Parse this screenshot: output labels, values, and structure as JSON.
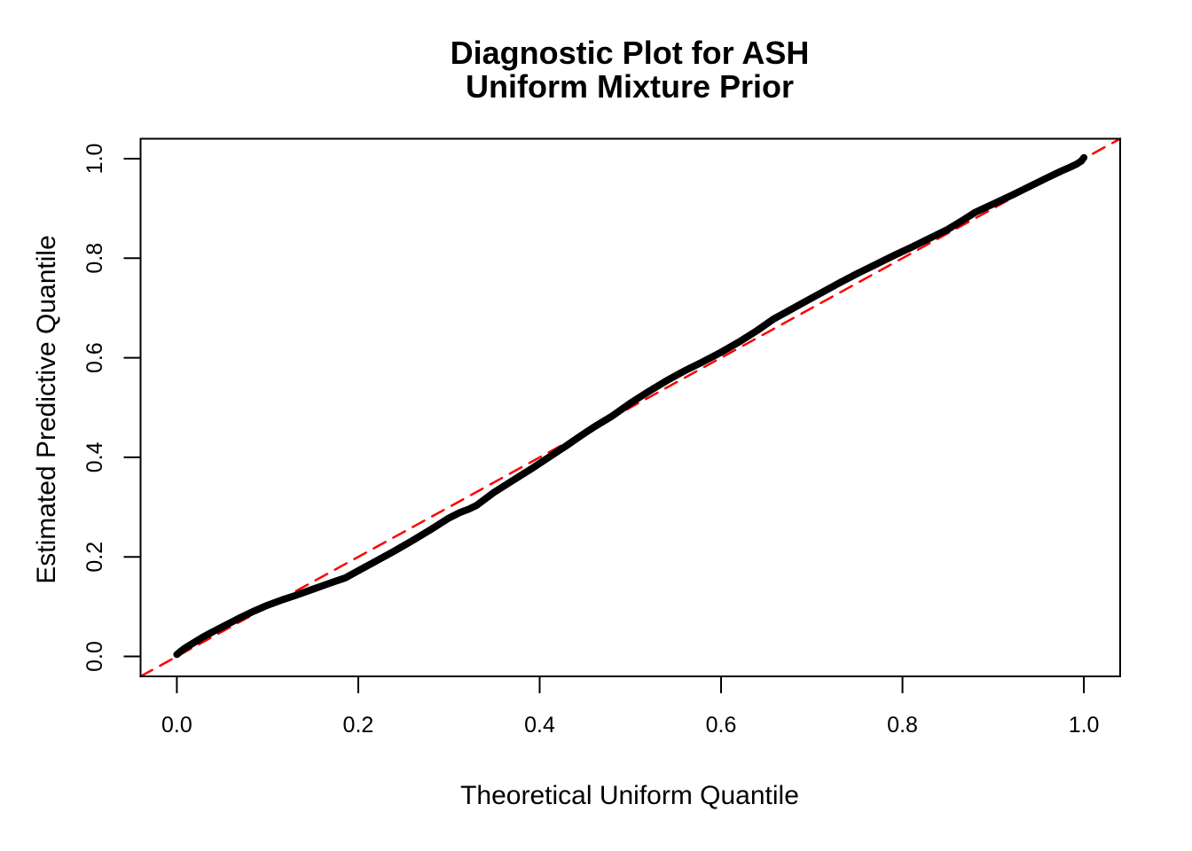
{
  "title_lines": [
    "Diagnostic Plot for ASH",
    "Uniform Mixture Prior"
  ],
  "colors": {
    "curve": "#000000",
    "reference_line": "#FF0000",
    "axis": "#000000",
    "background": "#FFFFFF"
  },
  "chart_data": {
    "type": "line",
    "title": "Diagnostic Plot for ASH\nUniform Mixture Prior",
    "xlabel": "Theoretical Uniform Quantile",
    "ylabel": "Estimated Predictive Quantile",
    "xlim": [
      -0.04,
      1.04
    ],
    "ylim": [
      -0.04,
      1.04
    ],
    "grid": false,
    "legend": null,
    "x_ticks": {
      "values": [
        0.0,
        0.2,
        0.4,
        0.6,
        0.8,
        1.0
      ],
      "labels": [
        "0.0",
        "0.2",
        "0.4",
        "0.6",
        "0.8",
        "1.0"
      ]
    },
    "y_ticks": {
      "values": [
        0.0,
        0.2,
        0.4,
        0.6,
        0.8,
        1.0
      ],
      "labels": [
        "0.0",
        "0.2",
        "0.4",
        "0.6",
        "0.8",
        "1.0"
      ]
    },
    "series": [
      {
        "name": "identity-reference-line",
        "description": "y = x reference",
        "style": "dashed",
        "color": "#FF0000",
        "line_width": 2.5,
        "points": [
          [
            -0.04,
            -0.04
          ],
          [
            1.04,
            1.04
          ]
        ]
      },
      {
        "name": "estimated-predictive-quantiles",
        "description": "Empirical QQ curve of estimated predictive quantile vs theoretical uniform quantile",
        "style": "solid",
        "color": "#000000",
        "line_width": 8,
        "points": [
          [
            0.0,
            0.004
          ],
          [
            0.004,
            0.01
          ],
          [
            0.01,
            0.018
          ],
          [
            0.018,
            0.027
          ],
          [
            0.028,
            0.038
          ],
          [
            0.04,
            0.05
          ],
          [
            0.055,
            0.064
          ],
          [
            0.07,
            0.078
          ],
          [
            0.085,
            0.091
          ],
          [
            0.1,
            0.103
          ],
          [
            0.115,
            0.113
          ],
          [
            0.13,
            0.122
          ],
          [
            0.15,
            0.135
          ],
          [
            0.17,
            0.148
          ],
          [
            0.186,
            0.158
          ],
          [
            0.2,
            0.172
          ],
          [
            0.22,
            0.192
          ],
          [
            0.24,
            0.212
          ],
          [
            0.26,
            0.233
          ],
          [
            0.28,
            0.255
          ],
          [
            0.3,
            0.278
          ],
          [
            0.312,
            0.289
          ],
          [
            0.322,
            0.296
          ],
          [
            0.33,
            0.303
          ],
          [
            0.35,
            0.33
          ],
          [
            0.37,
            0.353
          ],
          [
            0.39,
            0.376
          ],
          [
            0.41,
            0.4
          ],
          [
            0.43,
            0.424
          ],
          [
            0.445,
            0.443
          ],
          [
            0.46,
            0.461
          ],
          [
            0.48,
            0.483
          ],
          [
            0.5,
            0.509
          ],
          [
            0.52,
            0.532
          ],
          [
            0.54,
            0.554
          ],
          [
            0.56,
            0.574
          ],
          [
            0.58,
            0.592
          ],
          [
            0.6,
            0.611
          ],
          [
            0.62,
            0.632
          ],
          [
            0.64,
            0.655
          ],
          [
            0.658,
            0.678
          ],
          [
            0.67,
            0.69
          ],
          [
            0.69,
            0.71
          ],
          [
            0.71,
            0.73
          ],
          [
            0.73,
            0.75
          ],
          [
            0.75,
            0.769
          ],
          [
            0.77,
            0.787
          ],
          [
            0.79,
            0.805
          ],
          [
            0.81,
            0.822
          ],
          [
            0.83,
            0.84
          ],
          [
            0.85,
            0.858
          ],
          [
            0.868,
            0.878
          ],
          [
            0.88,
            0.892
          ],
          [
            0.9,
            0.909
          ],
          [
            0.92,
            0.926
          ],
          [
            0.94,
            0.944
          ],
          [
            0.96,
            0.962
          ],
          [
            0.975,
            0.975
          ],
          [
            0.985,
            0.983
          ],
          [
            0.992,
            0.989
          ],
          [
            0.997,
            0.995
          ],
          [
            1.0,
            1.002
          ]
        ]
      }
    ]
  }
}
